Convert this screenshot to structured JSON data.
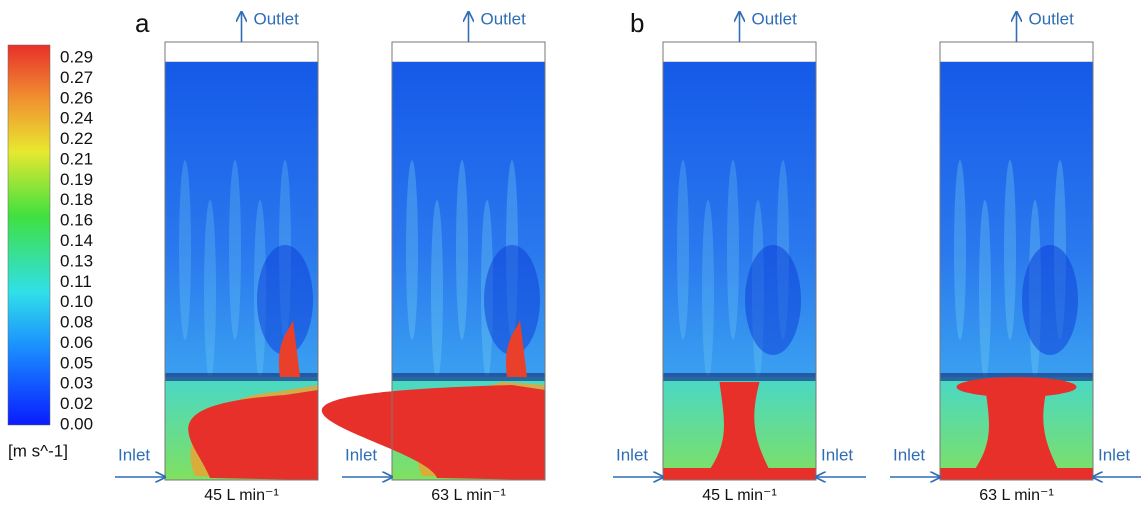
{
  "colorbar": {
    "ticks": [
      "0.29",
      "0.27",
      "0.26",
      "0.24",
      "0.22",
      "0.21",
      "0.19",
      "0.18",
      "0.16",
      "0.14",
      "0.13",
      "0.11",
      "0.10",
      "0.08",
      "0.06",
      "0.05",
      "0.03",
      "0.02",
      "0.00"
    ],
    "unit": "[m s^-1]"
  },
  "groups": [
    {
      "label": "a",
      "plots": [
        {
          "outlet": "Outlet",
          "inlet_left": "Inlet",
          "caption": "45 L min⁻¹"
        },
        {
          "outlet": "Outlet",
          "inlet_left": "Inlet",
          "caption": "63 L min⁻¹"
        }
      ]
    },
    {
      "label": "b",
      "plots": [
        {
          "outlet": "Outlet",
          "inlet_left": "Inlet",
          "inlet_right": "Inlet",
          "caption": "45 L min⁻¹"
        },
        {
          "outlet": "Outlet",
          "inlet_left": "Inlet",
          "inlet_right": "Inlet",
          "caption": "63 L min⁻¹"
        }
      ]
    }
  ]
}
